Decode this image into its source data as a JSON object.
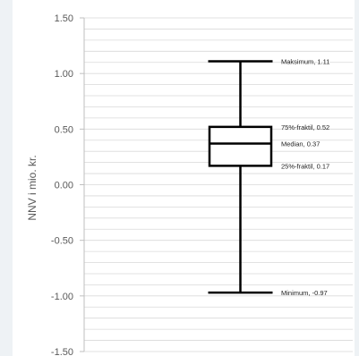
{
  "chart_data": {
    "type": "boxplot",
    "ylabel": "NNV  i mio. kr.",
    "ylim": [
      -1.5,
      1.5
    ],
    "y_ticks": [
      1.5,
      1.0,
      0.5,
      0.0,
      -0.5,
      -1.0,
      -1.5
    ],
    "y_tick_labels": [
      "1.50",
      "1.00",
      "0.50",
      "0.00",
      "-0.50",
      "-1.00",
      "-1.50"
    ],
    "minor_grid_step": 0.1,
    "grid": true,
    "box": {
      "maximum": 1.11,
      "q3": 0.52,
      "median": 0.37,
      "q1": 0.17,
      "minimum": -0.97
    },
    "annotations": [
      {
        "key": "maximum",
        "text": "Maksimum, 1.11"
      },
      {
        "key": "q3",
        "text": "75%-fraktil, 0.52"
      },
      {
        "key": "median",
        "text": "Median, 0.37"
      },
      {
        "key": "q1",
        "text": "25%-fraktil, 0.17"
      },
      {
        "key": "minimum",
        "text": "Minimum, -0.97"
      }
    ]
  },
  "colors": {
    "background": "#eef2f5",
    "plot_background": "#ffffff",
    "grid": "#d9d9d9",
    "axis": "#bfbfbf",
    "box_stroke": "#000000",
    "text": "#595959"
  }
}
